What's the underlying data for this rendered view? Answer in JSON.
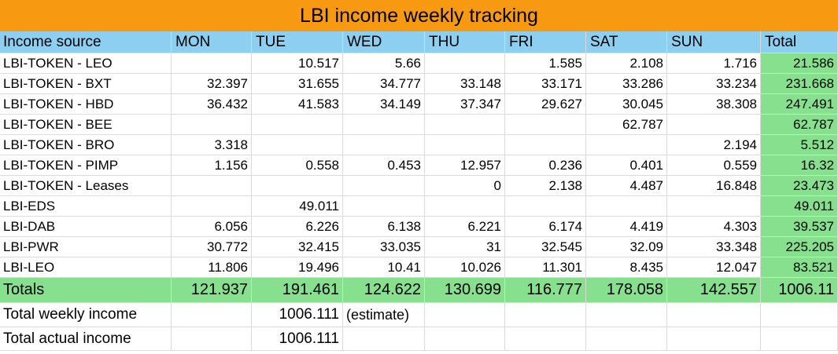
{
  "title": "LBI income weekly tracking",
  "headers": [
    "Income source",
    "MON",
    "TUE",
    "WED",
    "THU",
    "FRI",
    "SAT",
    "SUN",
    "Total"
  ],
  "rows": [
    {
      "label": "LBI-TOKEN - LEO",
      "cells": [
        "",
        "10.517",
        "5.66",
        "",
        "1.585",
        "2.108",
        "1.716"
      ],
      "total": "21.586"
    },
    {
      "label": "LBI-TOKEN - BXT",
      "cells": [
        "32.397",
        "31.655",
        "34.777",
        "33.148",
        "33.171",
        "33.286",
        "33.234"
      ],
      "total": "231.668"
    },
    {
      "label": "LBI-TOKEN - HBD",
      "cells": [
        "36.432",
        "41.583",
        "34.149",
        "37.347",
        "29.627",
        "30.045",
        "38.308"
      ],
      "total": "247.491"
    },
    {
      "label": "LBI-TOKEN - BEE",
      "cells": [
        "",
        "",
        "",
        "",
        "",
        "62.787",
        ""
      ],
      "total": "62.787"
    },
    {
      "label": "LBI-TOKEN - BRO",
      "cells": [
        "3.318",
        "",
        "",
        "",
        "",
        "",
        "2.194"
      ],
      "total": "5.512"
    },
    {
      "label": "LBI-TOKEN - PIMP",
      "cells": [
        "1.156",
        "0.558",
        "0.453",
        "12.957",
        "0.236",
        "0.401",
        "0.559"
      ],
      "total": "16.32"
    },
    {
      "label": "LBI-TOKEN - Leases",
      "cells": [
        "",
        "",
        "",
        "0",
        "2.138",
        "4.487",
        "16.848"
      ],
      "total": "23.473"
    },
    {
      "label": "LBI-EDS",
      "cells": [
        "",
        "49.011",
        "",
        "",
        "",
        "",
        ""
      ],
      "total": "49.011"
    },
    {
      "label": "LBI-DAB",
      "cells": [
        "6.056",
        "6.226",
        "6.138",
        "6.221",
        "6.174",
        "4.419",
        "4.303"
      ],
      "total": "39.537"
    },
    {
      "label": "LBI-PWR",
      "cells": [
        "30.772",
        "32.415",
        "33.035",
        "31",
        "32.545",
        "32.09",
        "33.348"
      ],
      "total": "225.205"
    },
    {
      "label": "LBI-LEO",
      "cells": [
        "11.806",
        "19.496",
        "10.41",
        "10.026",
        "11.301",
        "8.435",
        "12.047"
      ],
      "total": "83.521"
    }
  ],
  "totals": {
    "label": "Totals",
    "cells": [
      "121.937",
      "191.461",
      "124.622",
      "130.699",
      "116.777",
      "178.058",
      "142.557"
    ],
    "total": "1006.11"
  },
  "summary": {
    "weekly_label": "Total weekly income",
    "weekly_value": "1006.111",
    "weekly_note": "(estimate)",
    "actual_label": "Total actual income",
    "actual_value": "1006.111"
  },
  "colors": {
    "title_bg": "#f79a12",
    "header_bg": "#8ccff0",
    "total_bg": "#86e08e",
    "grid_line": "#dadada"
  }
}
